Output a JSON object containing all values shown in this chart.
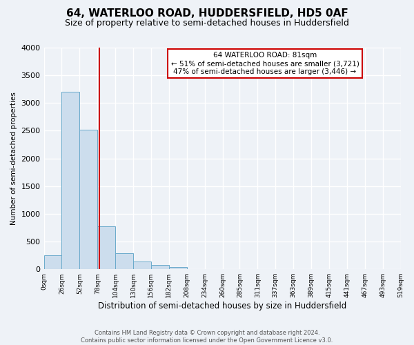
{
  "title": "64, WATERLOO ROAD, HUDDERSFIELD, HD5 0AF",
  "subtitle": "Size of property relative to semi-detached houses in Huddersfield",
  "xlabel": "Distribution of semi-detached houses by size in Huddersfield",
  "ylabel": "Number of semi-detached properties",
  "footer_line1": "Contains HM Land Registry data © Crown copyright and database right 2024.",
  "footer_line2": "Contains public sector information licensed under the Open Government Licence v3.0.",
  "bar_edges": [
    0,
    26,
    52,
    78,
    104,
    130,
    156,
    182,
    208,
    234,
    260,
    285,
    311,
    337,
    363,
    389,
    415,
    441,
    467,
    493,
    519
  ],
  "bar_heights": [
    250,
    3200,
    2520,
    780,
    290,
    140,
    75,
    40,
    0,
    0,
    0,
    0,
    0,
    0,
    0,
    0,
    0,
    0,
    0,
    0
  ],
  "tick_labels": [
    "0sqm",
    "26sqm",
    "52sqm",
    "78sqm",
    "104sqm",
    "130sqm",
    "156sqm",
    "182sqm",
    "208sqm",
    "234sqm",
    "260sqm",
    "285sqm",
    "311sqm",
    "337sqm",
    "363sqm",
    "389sqm",
    "415sqm",
    "441sqm",
    "467sqm",
    "493sqm",
    "519sqm"
  ],
  "bar_color": "#ccdded",
  "bar_edge_color": "#6aaacb",
  "property_line_x": 81,
  "annotation_title": "64 WATERLOO ROAD: 81sqm",
  "annotation_line1": "← 51% of semi-detached houses are smaller (3,721)",
  "annotation_line2": "47% of semi-detached houses are larger (3,446) →",
  "annotation_box_color": "#ffffff",
  "annotation_box_edge": "#cc0000",
  "vline_color": "#cc0000",
  "ylim": [
    0,
    4000
  ],
  "yticks": [
    0,
    500,
    1000,
    1500,
    2000,
    2500,
    3000,
    3500,
    4000
  ],
  "background_color": "#eef2f7",
  "plot_background": "#eef2f7",
  "grid_color": "#ffffff",
  "title_fontsize": 11,
  "subtitle_fontsize": 9
}
